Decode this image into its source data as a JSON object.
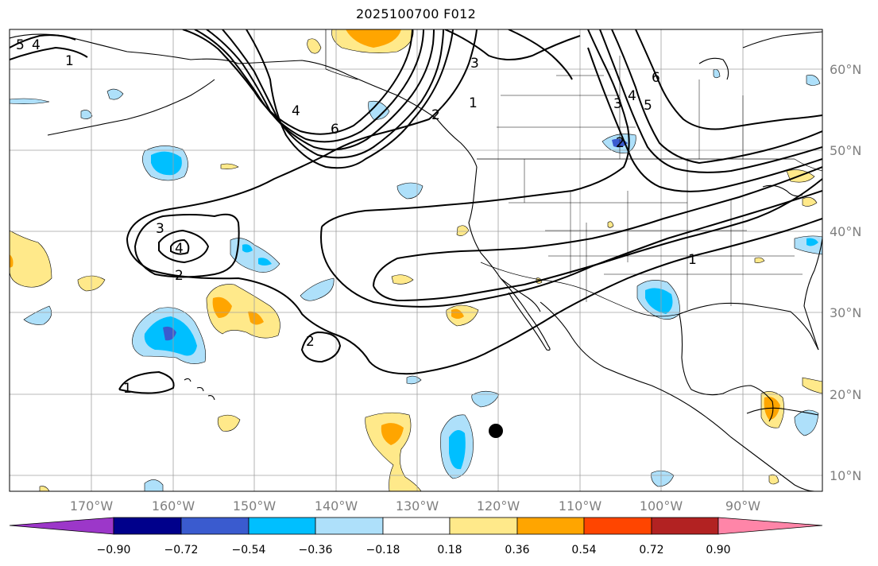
{
  "title": "2025100700 F012",
  "map": {
    "lat_labels": [
      "60°N",
      "50°N",
      "40°N",
      "30°N",
      "20°N",
      "10°N"
    ],
    "lon_labels": [
      "170°W",
      "160°W",
      "150°W",
      "140°W",
      "130°W",
      "120°W",
      "110°W",
      "100°W",
      "90°W"
    ],
    "lat_range": [
      8,
      65
    ],
    "lon_range": [
      -180,
      -80
    ],
    "grid": true,
    "marker": {
      "lon": -120,
      "lat": 15.5,
      "color": "#000000"
    }
  },
  "contour_labels": [
    "3",
    "4",
    "5",
    "6",
    "2",
    "1"
  ],
  "colorbar": {
    "ticks": [
      "−0.90",
      "−0.72",
      "−0.54",
      "−0.36",
      "−0.18",
      "0.18",
      "0.36",
      "0.54",
      "0.72",
      "0.90"
    ],
    "colors": [
      "#9c37c9",
      "#00008b",
      "#3a5bcf",
      "#00bfff",
      "#aee0fa",
      "#ffffff",
      "#ffe98a",
      "#ffa500",
      "#ff4500",
      "#b22222",
      "#ff85a8"
    ]
  }
}
